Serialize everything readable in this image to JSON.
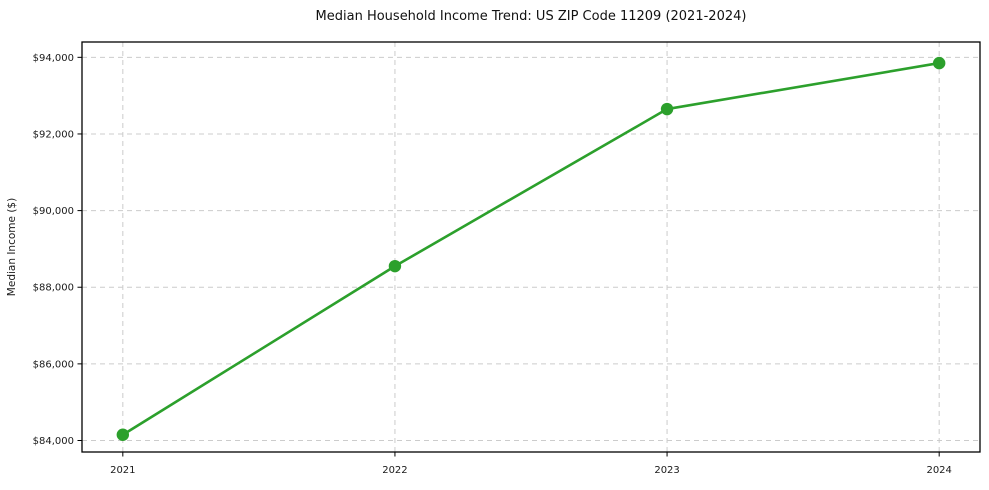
{
  "chart_data": {
    "type": "line",
    "title": "Median Household Income Trend: US ZIP Code 11209 (2021-2024)",
    "xlabel": "",
    "ylabel": "Median Income ($)",
    "x": [
      2021,
      2022,
      2023,
      2024
    ],
    "xtick_labels": [
      "2021",
      "2022",
      "2023",
      "2024"
    ],
    "values": [
      84150,
      88550,
      92650,
      93850
    ],
    "yticks": [
      84000,
      86000,
      88000,
      90000,
      92000,
      94000
    ],
    "ytick_labels": [
      "$84,000",
      "$86,000",
      "$88,000",
      "$90,000",
      "$92,000",
      "$94,000"
    ],
    "xlim": [
      2020.85,
      2024.15
    ],
    "ylim": [
      83700,
      94400
    ],
    "grid": "dashed",
    "legend": "none",
    "marker": "circle",
    "colors": {
      "line": "#2ca02c",
      "marker": "#2ca02c",
      "grid": "#cccccc",
      "axis": "#000000",
      "text": "#1a1a1a",
      "background": "#ffffff"
    }
  }
}
